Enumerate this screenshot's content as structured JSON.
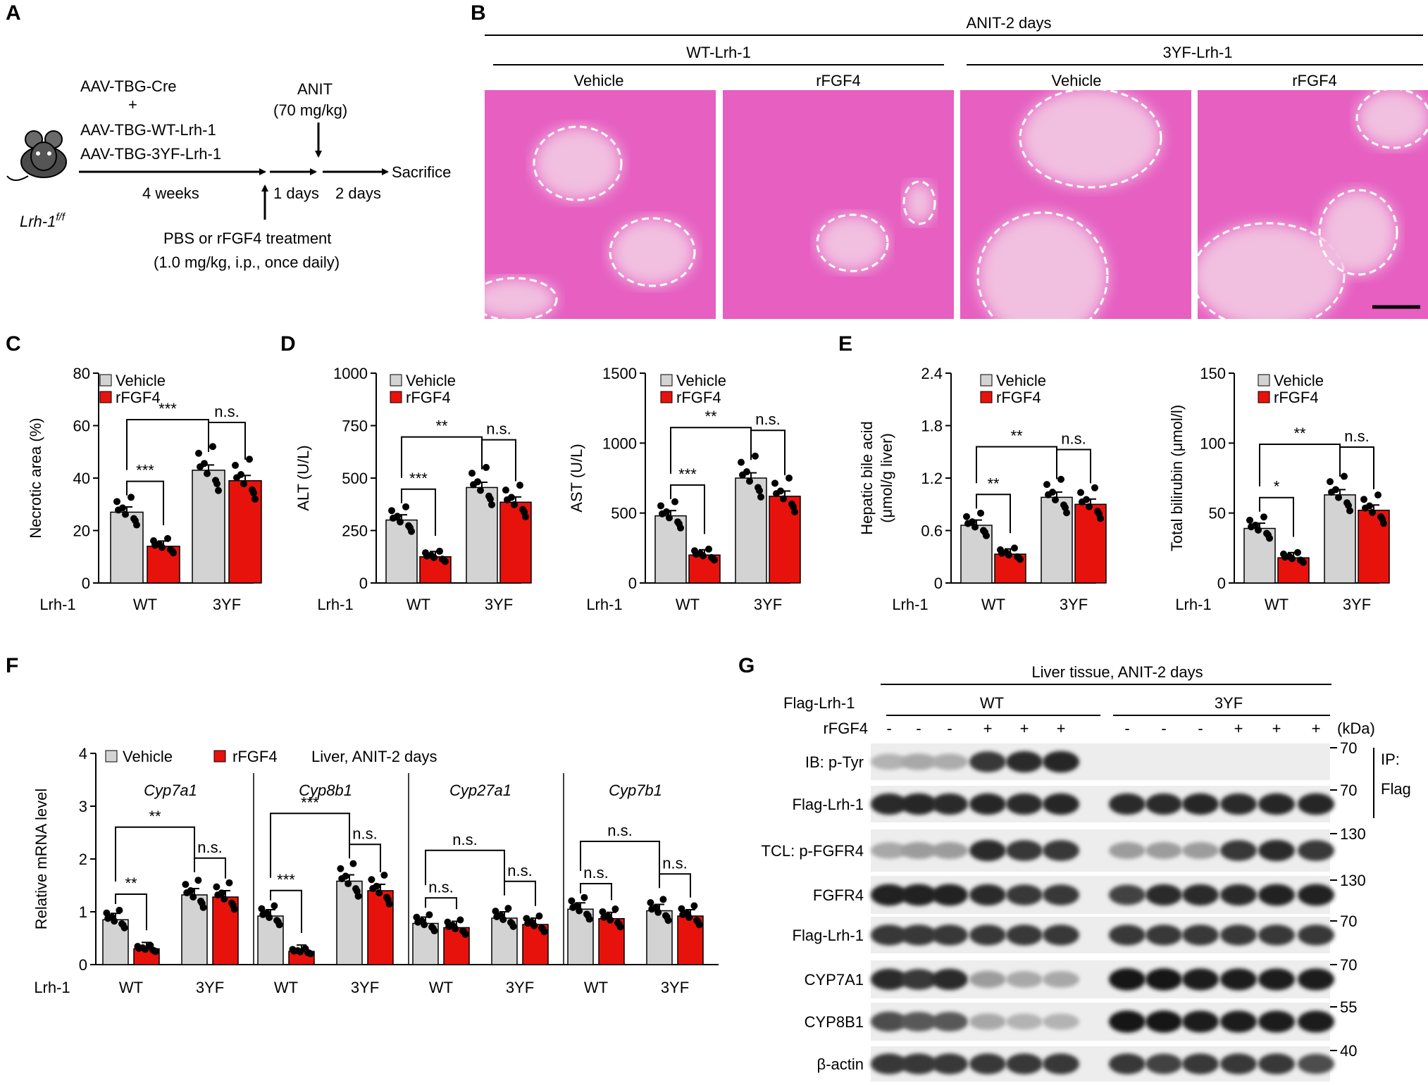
{
  "panel_labels": {
    "A": "A",
    "B": "B",
    "C": "C",
    "D": "D",
    "E": "E",
    "F": "F",
    "G": "G"
  },
  "panelA": {
    "line1": "AAV-TBG-Cre",
    "plus": "+",
    "line2": "AAV-TBG-WT-Lrh-1",
    "line3": "AAV-TBG-3YF-Lrh-1",
    "weeks": "4 weeks",
    "anit": "ANIT",
    "anit_dose": "(70 mg/kg)",
    "days1": "1 days",
    "days2": "2 days",
    "sacrifice": "Sacrifice",
    "treat": "PBS or rFGF4 treatment",
    "treat_dose": "(1.0 mg/kg, i.p., once daily)",
    "mouse_label": "Lrh-1",
    "mouse_sup": "f/f"
  },
  "panelB": {
    "title": "ANIT-2 days",
    "group_wt": "WT-Lrh-1",
    "group_3yf": "3YF-Lrh-1",
    "cols": [
      "Vehicle",
      "rFGF4",
      "Vehicle",
      "rFGF4"
    ]
  },
  "legend": {
    "vehicle": "Vehicle",
    "rfgf4": "rFGF4"
  },
  "colors": {
    "vehicle": "#d3d3d3",
    "rfgf4": "#e8120c",
    "tissue_bg": "#e65fc1",
    "necrotic": "#f1bfe0"
  },
  "sig": {
    "s1": "*",
    "s2": "**",
    "s3": "***",
    "ns": "n.s."
  },
  "xaxis": {
    "lrh1": "Lrh-1",
    "wt": "WT",
    "yf": "3YF"
  },
  "chart_data": [
    {
      "id": "C",
      "type": "bar",
      "ylabel": "Necrotic area (%)",
      "ylim": [
        0,
        80
      ],
      "yticks": [
        "0",
        "20",
        "40",
        "60",
        "80"
      ],
      "categories": [
        "WT",
        "3YF"
      ],
      "series": [
        {
          "name": "Vehicle",
          "values": [
            27,
            43
          ]
        },
        {
          "name": "rFGF4",
          "values": [
            14,
            39
          ]
        }
      ],
      "sig": [
        "***",
        "***",
        "n.s."
      ]
    },
    {
      "id": "D1",
      "type": "bar",
      "ylabel": "ALT (U/L)",
      "ylim": [
        0,
        1000
      ],
      "yticks": [
        "0",
        "250",
        "500",
        "750",
        "1000"
      ],
      "categories": [
        "WT",
        "3YF"
      ],
      "series": [
        {
          "name": "Vehicle",
          "values": [
            300,
            455
          ]
        },
        {
          "name": "rFGF4",
          "values": [
            125,
            385
          ]
        }
      ],
      "sig": [
        "***",
        "**",
        "n.s."
      ]
    },
    {
      "id": "D2",
      "type": "bar",
      "ylabel": "AST (U/L)",
      "ylim": [
        0,
        1500
      ],
      "yticks": [
        "0",
        "500",
        "1000",
        "1500"
      ],
      "categories": [
        "WT",
        "3YF"
      ],
      "series": [
        {
          "name": "Vehicle",
          "values": [
            480,
            750
          ]
        },
        {
          "name": "rFGF4",
          "values": [
            200,
            620
          ]
        }
      ],
      "sig": [
        "***",
        "**",
        "n.s."
      ]
    },
    {
      "id": "E1",
      "type": "bar",
      "ylabel": "Hepatic bile acid",
      "ylabel2": "(μmol/g liver)",
      "ylim": [
        0,
        2.4
      ],
      "yticks": [
        "0",
        "0.6",
        "1.2",
        "1.8",
        "2.4"
      ],
      "categories": [
        "WT",
        "3YF"
      ],
      "series": [
        {
          "name": "Vehicle",
          "values": [
            0.66,
            0.98
          ]
        },
        {
          "name": "rFGF4",
          "values": [
            0.33,
            0.9
          ]
        }
      ],
      "sig": [
        "**",
        "**",
        "n.s."
      ]
    },
    {
      "id": "E2",
      "type": "bar",
      "ylabel": "Total bilirubin (μmol/l)",
      "ylim": [
        0,
        150
      ],
      "yticks": [
        "0",
        "50",
        "100",
        "150"
      ],
      "categories": [
        "WT",
        "3YF"
      ],
      "series": [
        {
          "name": "Vehicle",
          "values": [
            39,
            63
          ]
        },
        {
          "name": "rFGF4",
          "values": [
            18,
            52
          ]
        }
      ],
      "sig": [
        "*",
        "**",
        "n.s."
      ]
    },
    {
      "id": "F",
      "type": "bar",
      "ylabel": "Relative mRNA level",
      "ylim": [
        0,
        4
      ],
      "yticks": [
        "0",
        "1",
        "2",
        "3",
        "4"
      ],
      "note": "Liver, ANIT-2 days",
      "genes": [
        {
          "name": "Cyp7a1",
          "values": [
            0.85,
            0.3,
            1.32,
            1.28
          ],
          "sig": [
            "**",
            "**",
            "n.s."
          ]
        },
        {
          "name": "Cyp8b1",
          "values": [
            0.92,
            0.25,
            1.58,
            1.4
          ],
          "sig": [
            "***",
            "***",
            "n.s."
          ]
        },
        {
          "name": "Cyp27a1",
          "values": [
            0.78,
            0.7,
            0.88,
            0.76
          ],
          "sig": [
            "n.s.",
            "n.s.",
            "n.s."
          ]
        },
        {
          "name": "Cyp7b1",
          "values": [
            1.05,
            0.87,
            1.02,
            0.92
          ],
          "sig": [
            "n.s.",
            "n.s.",
            "n.s."
          ]
        }
      ]
    }
  ],
  "panelG": {
    "title": "Liver tissue, ANIT-2 days",
    "flag_row": "Flag-Lrh-1",
    "wt": "WT",
    "yf": "3YF",
    "rfgf4_row": "rFGF4",
    "kda": "(kDa)",
    "signs": [
      "-",
      "-",
      "-",
      "+",
      "+",
      "+",
      "-",
      "-",
      "-",
      "+",
      "+",
      "+"
    ],
    "ip": "IP:",
    "ip2": "Flag",
    "blots": [
      {
        "label": "IB: p-Tyr",
        "mw": "70",
        "int": [
          0.25,
          0.3,
          0.28,
          0.8,
          0.85,
          0.88,
          0,
          0,
          0,
          0,
          0,
          0
        ],
        "fade": 0.6
      },
      {
        "label": "Flag-Lrh-1",
        "mw": "70",
        "int": [
          0.85,
          0.88,
          0.85,
          0.87,
          0.86,
          0.88,
          0.86,
          0.85,
          0.87,
          0.86,
          0.87,
          0.88
        ],
        "fade": 0.15
      },
      {
        "label": "TCL: p-FGFR4",
        "mw": "130",
        "int": [
          0.3,
          0.35,
          0.35,
          0.85,
          0.8,
          0.8,
          0.35,
          0.35,
          0.35,
          0.8,
          0.85,
          0.8
        ],
        "fade": 0.6
      },
      {
        "label": "FGFR4",
        "mw": "130",
        "int": [
          0.9,
          0.9,
          0.9,
          0.85,
          0.8,
          0.8,
          0.75,
          0.85,
          0.85,
          0.85,
          0.9,
          0.9
        ],
        "fade": 0.2
      },
      {
        "label": "Flag-Lrh-1",
        "mw": "70",
        "int": [
          0.8,
          0.8,
          0.8,
          0.8,
          0.8,
          0.8,
          0.8,
          0.8,
          0.8,
          0.8,
          0.8,
          0.8
        ],
        "fade": 0.15
      },
      {
        "label": "CYP7A1",
        "mw": "70",
        "int": [
          0.85,
          0.8,
          0.85,
          0.35,
          0.3,
          0.3,
          0.95,
          0.95,
          0.92,
          0.92,
          0.92,
          0.92
        ],
        "fade": 0.1
      },
      {
        "label": "CYP8B1",
        "mw": "55",
        "int": [
          0.7,
          0.65,
          0.65,
          0.3,
          0.25,
          0.25,
          0.95,
          0.95,
          0.92,
          0.92,
          0.92,
          0.92
        ],
        "fade": 0.1
      },
      {
        "label": "β-actin",
        "mw": "40",
        "int": [
          0.8,
          0.8,
          0.8,
          0.8,
          0.8,
          0.8,
          0.8,
          0.75,
          0.8,
          0.8,
          0.8,
          0.7
        ],
        "fade": 0.1
      }
    ]
  }
}
